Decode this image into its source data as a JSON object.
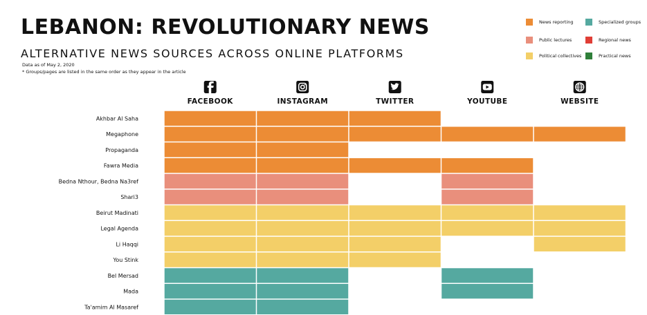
{
  "header": {
    "title": "LEBANON: REVOLUTIONARY NEWS",
    "subtitle": "ALTERNATIVE NEWS SOURCES ACROSS ONLINE PLATFORMS",
    "note_date": "Data as of May 2, 2020",
    "note_order": "* Groups/pages are listed in the same order as they appear in the article"
  },
  "legend": [
    {
      "label": "News reporting",
      "color": "#ec8c35"
    },
    {
      "label": "Specialized groups",
      "color": "#55a9a0"
    },
    {
      "label": "Public lectures",
      "color": "#e98f7c"
    },
    {
      "label": "Regional news",
      "color": "#e03e36"
    },
    {
      "label": "Political collectives",
      "color": "#f3cf68"
    },
    {
      "label": "Practical news",
      "color": "#2f7f3a"
    }
  ],
  "chart_data": {
    "type": "table",
    "platforms": [
      {
        "label": "FACEBOOK",
        "icon": "facebook-icon"
      },
      {
        "label": "INSTAGRAM",
        "icon": "instagram-icon"
      },
      {
        "label": "TWITTER",
        "icon": "twitter-icon"
      },
      {
        "label": "YOUTUBE",
        "icon": "youtube-icon"
      },
      {
        "label": "WEBSITE",
        "icon": "globe-icon"
      }
    ],
    "categories": {
      "News reporting": "#ec8c35",
      "Public lectures": "#e98f7c",
      "Political collectives": "#f3cf68",
      "Specialized groups": "#55a9a0"
    },
    "rows": [
      {
        "name": "Akhbar Al Saha",
        "category": "News reporting",
        "presence": [
          1,
          1,
          1,
          0,
          0
        ]
      },
      {
        "name": "Megaphone",
        "category": "News reporting",
        "presence": [
          1,
          1,
          1,
          1,
          1
        ]
      },
      {
        "name": "Propaganda",
        "category": "News reporting",
        "presence": [
          1,
          1,
          0,
          0,
          0
        ]
      },
      {
        "name": "Fawra Media",
        "category": "News reporting",
        "presence": [
          1,
          1,
          1,
          1,
          0
        ]
      },
      {
        "name": "Bedna Nthour, Bedna Na3ref",
        "category": "Public lectures",
        "presence": [
          1,
          1,
          0,
          1,
          0
        ]
      },
      {
        "name": "Shari3",
        "category": "Public lectures",
        "presence": [
          1,
          1,
          0,
          1,
          0
        ]
      },
      {
        "name": "Beirut Madinati",
        "category": "Political collectives",
        "presence": [
          1,
          1,
          1,
          1,
          1
        ]
      },
      {
        "name": "Legal Agenda",
        "category": "Political collectives",
        "presence": [
          1,
          1,
          1,
          1,
          1
        ]
      },
      {
        "name": "Li Haqqi",
        "category": "Political collectives",
        "presence": [
          1,
          1,
          1,
          0,
          1
        ]
      },
      {
        "name": "You Stink",
        "category": "Political collectives",
        "presence": [
          1,
          1,
          1,
          0,
          0
        ]
      },
      {
        "name": "Bel Mersad",
        "category": "Specialized groups",
        "presence": [
          1,
          1,
          0,
          1,
          0
        ]
      },
      {
        "name": "Mada",
        "category": "Specialized groups",
        "presence": [
          1,
          1,
          0,
          1,
          0
        ]
      },
      {
        "name": "Ta'amim Al Masaref",
        "category": "Specialized groups",
        "presence": [
          1,
          1,
          0,
          0,
          0
        ]
      }
    ]
  }
}
